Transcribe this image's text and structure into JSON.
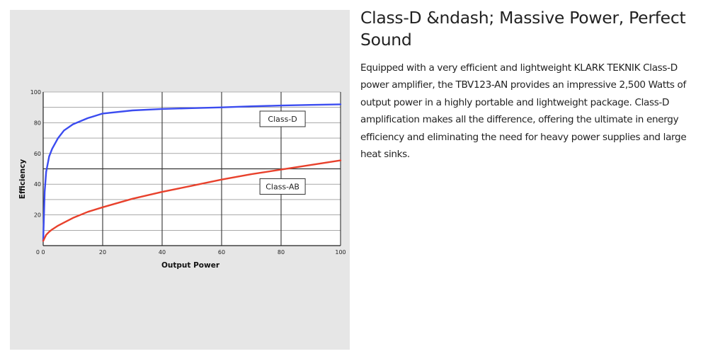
{
  "article": {
    "title": "Class-D &ndash; Massive Power, Perfect Sound",
    "body": "Equipped with a very efficient and lightweight KLARK TEKNIK Class-D power amplifier, the TBV123-AN provides an impressive 2,500 Watts of output power in a highly portable and lightweight package. Class-D amplification makes all the difference, offering the ultimate in energy efficiency and eliminating the need for heavy power supplies and large heat sinks."
  },
  "chart_data": {
    "type": "line",
    "xlabel": "Output Power",
    "ylabel": "Efficiency",
    "xlim": [
      0,
      100
    ],
    "ylim": [
      0,
      100
    ],
    "x_ticks": [
      0,
      20,
      40,
      60,
      80,
      100
    ],
    "y_ticks": [
      20,
      40,
      60,
      80,
      100
    ],
    "grid": true,
    "series": [
      {
        "name": "Class-D",
        "color": "#3b4cf0",
        "x": [
          0,
          0.5,
          1,
          2,
          3,
          5,
          7,
          10,
          15,
          20,
          30,
          40,
          50,
          60,
          70,
          80,
          90,
          100
        ],
        "y": [
          3,
          35,
          48,
          58,
          63,
          70,
          75,
          79,
          83,
          86,
          88,
          89,
          89.5,
          90,
          90.7,
          91.2,
          91.6,
          92
        ]
      },
      {
        "name": "Class-AB",
        "color": "#e8412c",
        "x": [
          0,
          0.5,
          1,
          2,
          3,
          5,
          7,
          10,
          15,
          20,
          30,
          40,
          50,
          60,
          70,
          80,
          90,
          100
        ],
        "y": [
          3,
          5,
          7,
          9,
          10.5,
          13,
          15,
          18,
          22,
          25,
          30.5,
          35,
          39,
          43,
          46.5,
          49.5,
          52.5,
          55.5
        ]
      }
    ]
  }
}
